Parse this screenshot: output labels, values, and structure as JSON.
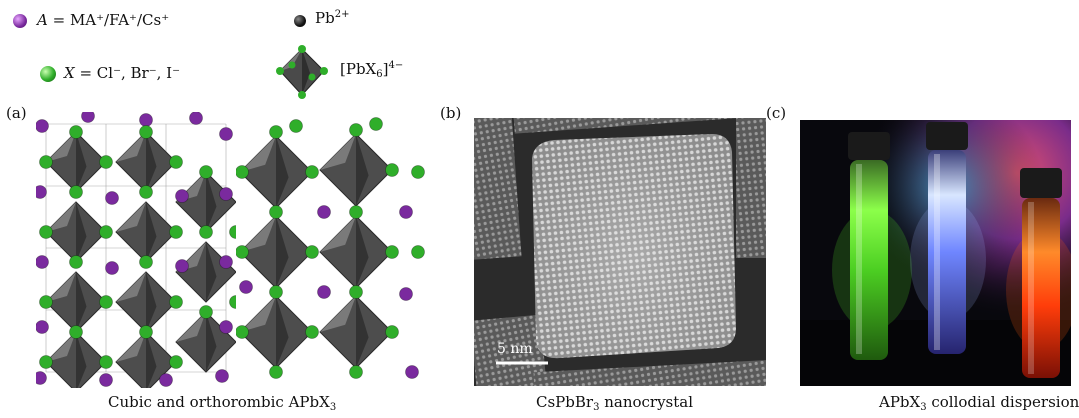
{
  "legend": {
    "a_site": {
      "symbol": "A",
      "rest": "MA⁺/FA⁺/Cs⁺"
    },
    "pb": {
      "base": "Pb",
      "sup": "2+"
    },
    "x_site": {
      "symbol": "X",
      "rest": "Cl⁻, Br⁻, I⁻"
    },
    "octahedron": {
      "base": "[PbX",
      "sub": "6",
      "close": "]",
      "sup": "4−"
    }
  },
  "panels": {
    "a": {
      "label": "(a)",
      "caption_base": "Cubic and orthorombic APbX",
      "caption_sub": "3"
    },
    "b": {
      "label": "(b)",
      "caption_base": "CsPbBr",
      "caption_sub": "3",
      "caption_rest": " nanocrystal",
      "scale_bar": "5 nm"
    },
    "c": {
      "label": "(c)",
      "caption_base": "APbX",
      "caption_sub": "3",
      "caption_rest": " collodial dispersions"
    }
  },
  "colors": {
    "a_site": "#7a2a9e",
    "x_site": "#2fae2a",
    "pb": "#111111",
    "octahedron": "#555555",
    "micrograph_bg": "#7c7c7c",
    "vial_green": "#7cff3a",
    "vial_blue": "#a9c4ff",
    "vial_red": "#ff5a10"
  }
}
